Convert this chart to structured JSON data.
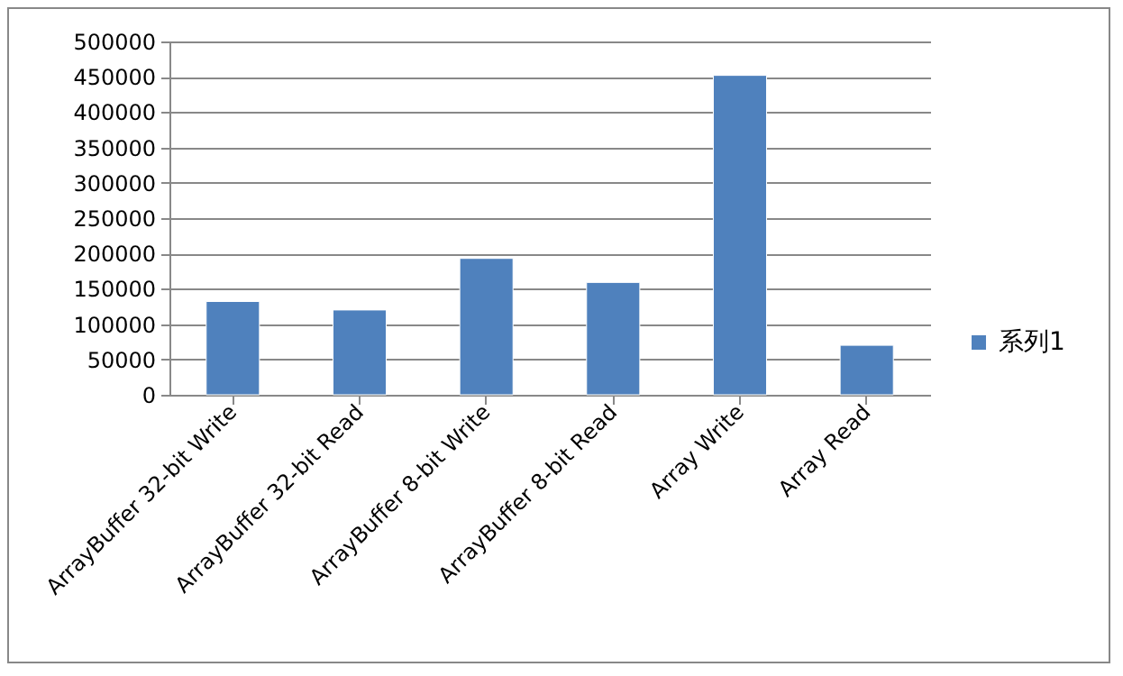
{
  "chart_data": {
    "type": "bar",
    "categories": [
      "ArrayBuffer 32-bit Write",
      "ArrayBuffer 32-bit Read",
      "ArrayBuffer 8-bit Write",
      "ArrayBuffer 8-bit Read",
      "Array Write",
      "Array Read"
    ],
    "series": [
      {
        "name": "系列1",
        "color": "#4f81bd",
        "values": [
          132000,
          120000,
          193000,
          159000,
          452000,
          70000
        ]
      }
    ],
    "ylim": [
      0,
      500000
    ],
    "yticks": [
      0,
      50000,
      100000,
      150000,
      200000,
      250000,
      300000,
      350000,
      400000,
      450000,
      500000
    ],
    "grid": "y",
    "legend": "right"
  }
}
